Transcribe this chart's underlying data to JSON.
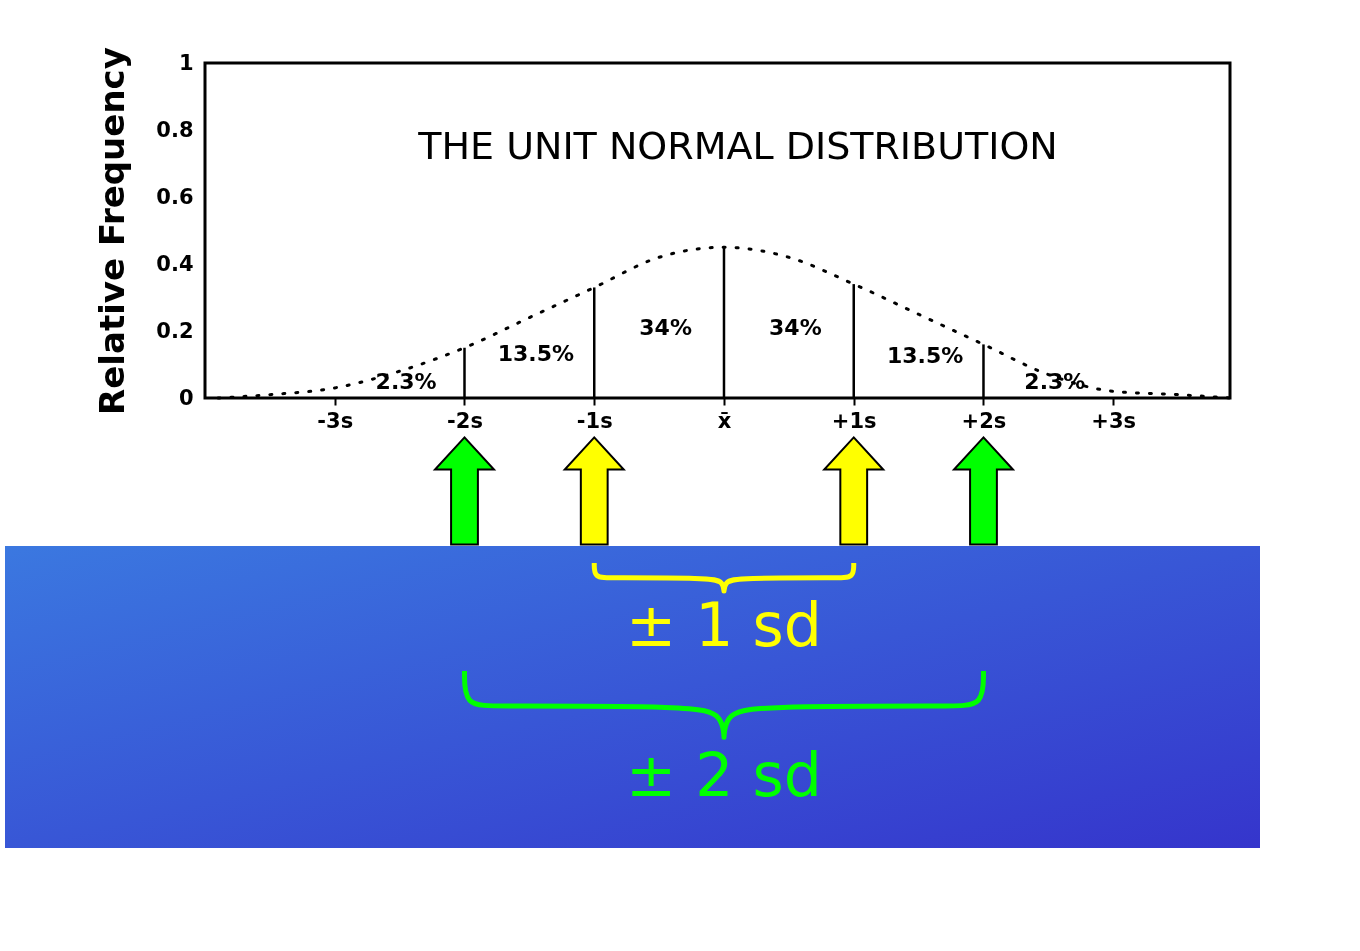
{
  "chart_data": {
    "type": "line",
    "title": "THE UNIT NORMAL DISTRIBUTION",
    "ylabel": "Relative Frequency",
    "x": [
      -3.9,
      -3.5,
      -3,
      -2.5,
      -2,
      -1.5,
      -1,
      -0.5,
      0,
      0.5,
      1,
      1.5,
      2,
      2.5,
      3,
      3.5,
      3.9
    ],
    "series": [
      {
        "color": "#000000",
        "values": [
          0.0,
          0.01,
          0.03,
          0.08,
          0.15,
          0.24,
          0.33,
          0.42,
          0.45,
          0.42,
          0.34,
          0.25,
          0.16,
          0.07,
          0.02,
          0.01,
          0.0
        ]
      }
    ],
    "xlim": [
      -4,
      3.9
    ],
    "ylim": [
      0,
      1
    ],
    "xticks": [
      {
        "value": -3,
        "label": "-3s"
      },
      {
        "value": -2,
        "label": "-2s"
      },
      {
        "value": -1,
        "label": "-1s"
      },
      {
        "value": 0,
        "label": "x̄"
      },
      {
        "value": 1,
        "label": "+1s"
      },
      {
        "value": 2,
        "label": "+2s"
      },
      {
        "value": 3,
        "label": "+3s"
      }
    ],
    "yticks": [
      0,
      0.2,
      0.4,
      0.6,
      0.8,
      1
    ],
    "grid": false,
    "marker": "none",
    "line_style": "dotted",
    "ref_lines": [
      {
        "axis": "x",
        "value": -2
      },
      {
        "axis": "x",
        "value": -1
      },
      {
        "axis": "x",
        "value": 0
      },
      {
        "axis": "x",
        "value": 1
      },
      {
        "axis": "x",
        "value": 2
      }
    ],
    "annotations": [
      "2.3%",
      "13.5%",
      "34%",
      "34%",
      "13.5%",
      "2.3%",
      "± 1 sd",
      "± 2 sd"
    ]
  }
}
